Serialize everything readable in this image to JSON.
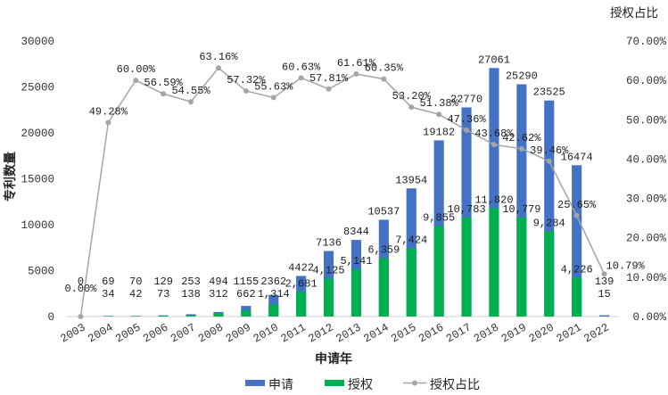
{
  "chart_data": {
    "type": "bar",
    "stacked": false,
    "xlabel": "申请年",
    "ylabel": "专利数量",
    "y2label": "授权占比",
    "ylim": [
      0,
      30000
    ],
    "y2lim": [
      0,
      0.7
    ],
    "grid": false,
    "legend_position": "bottom",
    "categories": [
      "2003",
      "2004",
      "2005",
      "2006",
      "2007",
      "2008",
      "2009",
      "2010",
      "2011",
      "2012",
      "2013",
      "2014",
      "2015",
      "2016",
      "2017",
      "2018",
      "2019",
      "2020",
      "2021",
      "2022"
    ],
    "yticks": [
      "0",
      "5000",
      "10000",
      "15000",
      "20000",
      "25000",
      "30000"
    ],
    "y2ticks": [
      "0.00%",
      "10.00%",
      "20.00%",
      "30.00%",
      "40.00%",
      "50.00%",
      "60.00%",
      "70.00%"
    ],
    "series": [
      {
        "name": "申请",
        "kind": "bar",
        "color": "#4472C4",
        "values": [
          0,
          69,
          70,
          129,
          253,
          494,
          1155,
          2362,
          4422,
          7136,
          8344,
          10537,
          13954,
          19182,
          22770,
          27061,
          25290,
          23525,
          16474,
          139
        ],
        "labels": [
          "0",
          "69",
          "70",
          "129",
          "253",
          "494",
          "1155",
          "2362",
          "4422",
          "7136",
          "8344",
          "10537",
          "13954",
          "19182",
          "22770",
          "27061",
          "25290",
          "23525",
          "16474",
          "139"
        ]
      },
      {
        "name": "授权",
        "kind": "bar",
        "color": "#00B050",
        "values": [
          0,
          34,
          42,
          73,
          138,
          312,
          662,
          1314,
          2681,
          4125,
          5141,
          6359,
          7424,
          9855,
          10783,
          11820,
          10779,
          9284,
          4226,
          15
        ],
        "labels": [
          "",
          "34",
          "42",
          "73",
          "138",
          "312",
          "662",
          "1,314",
          "2,681",
          "4,125",
          "5,141",
          "6,359",
          "7,424",
          "9,855",
          "10,783",
          "11,820",
          "10,779",
          "9,284",
          "4,226",
          "15"
        ]
      },
      {
        "name": "授权占比",
        "kind": "line",
        "axis": "right",
        "color": "#A5A5A5",
        "values": [
          0.0,
          0.4928,
          0.6,
          0.5659,
          0.5455,
          0.6316,
          0.5732,
          0.5563,
          0.6063,
          0.5781,
          0.6161,
          0.6035,
          0.532,
          0.5138,
          0.4736,
          0.4368,
          0.4262,
          0.3946,
          0.2565,
          0.1079
        ],
        "labels": [
          "0.00%",
          "49.28%",
          "60.00%",
          "56.59%",
          "54.55%",
          "63.16%",
          "57.32%",
          "55.63%",
          "60.63%",
          "57.81%",
          "61.61%",
          "60.35%",
          "53.20%",
          "51.38%",
          "47.36%",
          "43.68%",
          "42.62%",
          "39.46%",
          "25.65%",
          "10.79%"
        ]
      }
    ]
  }
}
